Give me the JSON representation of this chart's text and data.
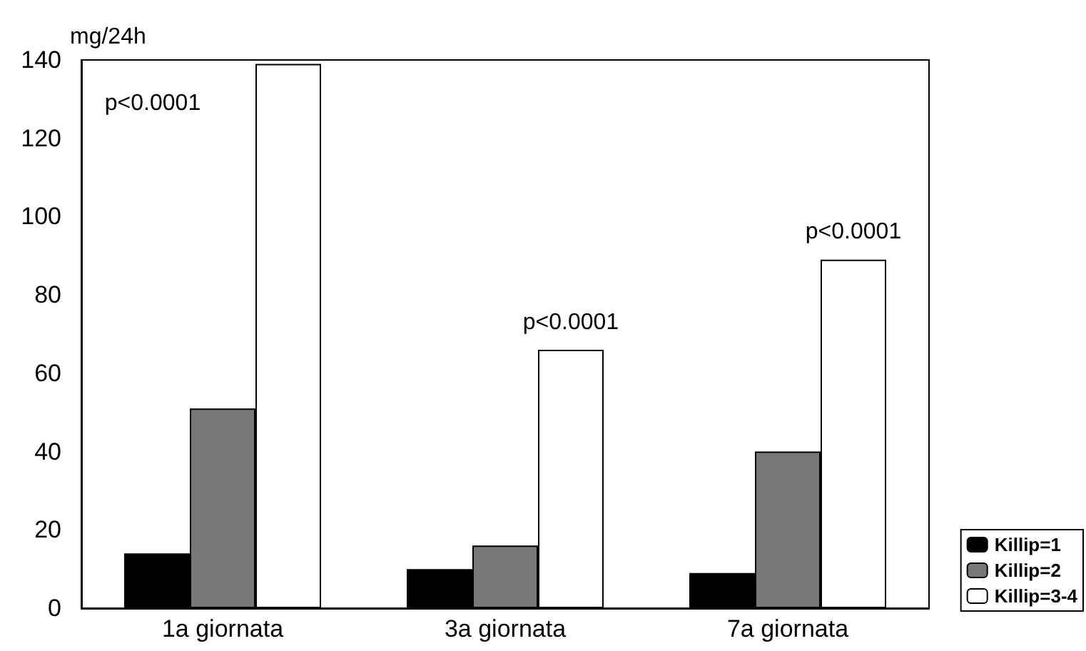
{
  "chart_data": {
    "type": "bar",
    "ylabel": "mg/24h",
    "categories": [
      "1a giornata",
      "3a giornata",
      "7a giornata"
    ],
    "series": [
      {
        "name": "Killip=1",
        "color": "#000000",
        "values": [
          14,
          10,
          9
        ]
      },
      {
        "name": "Killip=2",
        "color": "#777777",
        "values": [
          51,
          16,
          40
        ]
      },
      {
        "name": "Killip=3-4",
        "color": "#ffffff",
        "values": [
          139,
          66,
          89
        ]
      }
    ],
    "ylim": [
      0,
      140
    ],
    "yticks": [
      0,
      20,
      40,
      60,
      80,
      100,
      120,
      140
    ],
    "annotations": [
      "p<0.0001",
      "p<0.0001",
      "p<0.0001"
    ],
    "legend": "bottom right"
  }
}
